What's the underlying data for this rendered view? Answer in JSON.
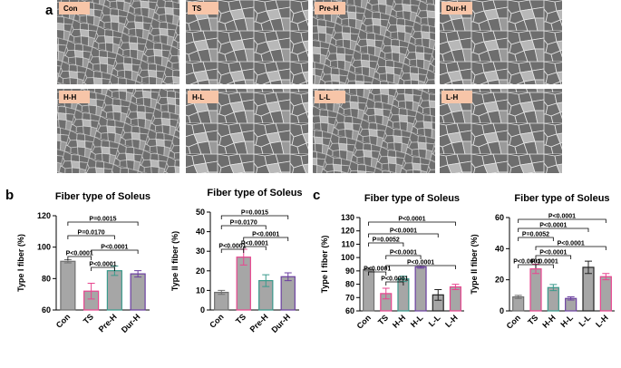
{
  "panels": [
    "a",
    "b",
    "c"
  ],
  "image_labels": [
    "Con",
    "TS",
    "Pre-H",
    "Dur-H",
    "H-H",
    "H-L",
    "L-L",
    "L-H"
  ],
  "chart_data": [
    {
      "type": "bar",
      "title": "Fiber type of Soleus",
      "y_label": "Type I fiber (%)",
      "categories": [
        "Con",
        "TS",
        "Pre-H",
        "Dur-H"
      ],
      "values": [
        91,
        72,
        85,
        83
      ],
      "errors": [
        1,
        5,
        3,
        2
      ],
      "colors": [
        "#707070",
        "#e8458f",
        "#3a9a8c",
        "#6b3fa0"
      ],
      "bar_color": "#a6a6a6",
      "ylim": [
        60,
        120
      ],
      "yticks": [
        60,
        80,
        100,
        120
      ],
      "annotations": [
        "P=0.0015",
        "P=0.0170",
        "P<0.0001",
        "P<0.0001",
        "P<0.0001"
      ]
    },
    {
      "type": "bar",
      "title": "Fiber type of Soleus",
      "y_label": "Type II fiber (%)",
      "categories": [
        "Con",
        "TS",
        "Pre-H",
        "Dur-H"
      ],
      "values": [
        9,
        27,
        15,
        17
      ],
      "errors": [
        1,
        4,
        3,
        2
      ],
      "colors": [
        "#707070",
        "#e8458f",
        "#3a9a8c",
        "#6b3fa0"
      ],
      "bar_color": "#a6a6a6",
      "ylim": [
        0,
        50
      ],
      "yticks": [
        0,
        10,
        20,
        30,
        40,
        50
      ],
      "annotations": [
        "P=0.0015",
        "P=0.0170",
        "P<0.0001",
        "P<0.0001",
        "P<0.0001"
      ]
    },
    {
      "type": "bar",
      "title": "Fiber type of Soleus",
      "y_label": "Type I fiber (%)",
      "categories": [
        "Con",
        "TS",
        "H-H",
        "H-L",
        "L-L",
        "L-H"
      ],
      "values": [
        91,
        73,
        84,
        93,
        72,
        78
      ],
      "errors": [
        1,
        4,
        2,
        1,
        4,
        2
      ],
      "colors": [
        "#707070",
        "#e8458f",
        "#3a9a8c",
        "#6b3fa0",
        "#222222",
        "#e8458f"
      ],
      "bar_color": "#a6a6a6",
      "ylim": [
        60,
        130
      ],
      "yticks": [
        60,
        70,
        80,
        90,
        100,
        110,
        120,
        130
      ],
      "annotations": [
        "P<0.0001",
        "P<0.0001",
        "P=0.0052",
        "P<0.0001",
        "P<0.0001",
        "P<0.0001",
        "P<0.0001"
      ]
    },
    {
      "type": "bar",
      "title": "Fiber type of Soleus",
      "y_label": "Type II fiber (%)",
      "categories": [
        "Con",
        "TS",
        "H-H",
        "H-L",
        "L-L",
        "L-H"
      ],
      "values": [
        9,
        27,
        15,
        8,
        28,
        22
      ],
      "errors": [
        1,
        3,
        2,
        1,
        4,
        2
      ],
      "colors": [
        "#707070",
        "#e8458f",
        "#3a9a8c",
        "#6b3fa0",
        "#222222",
        "#e8458f"
      ],
      "bar_color": "#a6a6a6",
      "ylim": [
        0,
        60
      ],
      "yticks": [
        0,
        20,
        40,
        60
      ],
      "annotations": [
        "P<0.0001",
        "P<0.0001",
        "P=0.0052",
        "P<0.0001",
        "P<0.0001",
        "P<0.0001",
        "P<0.0001"
      ]
    }
  ]
}
